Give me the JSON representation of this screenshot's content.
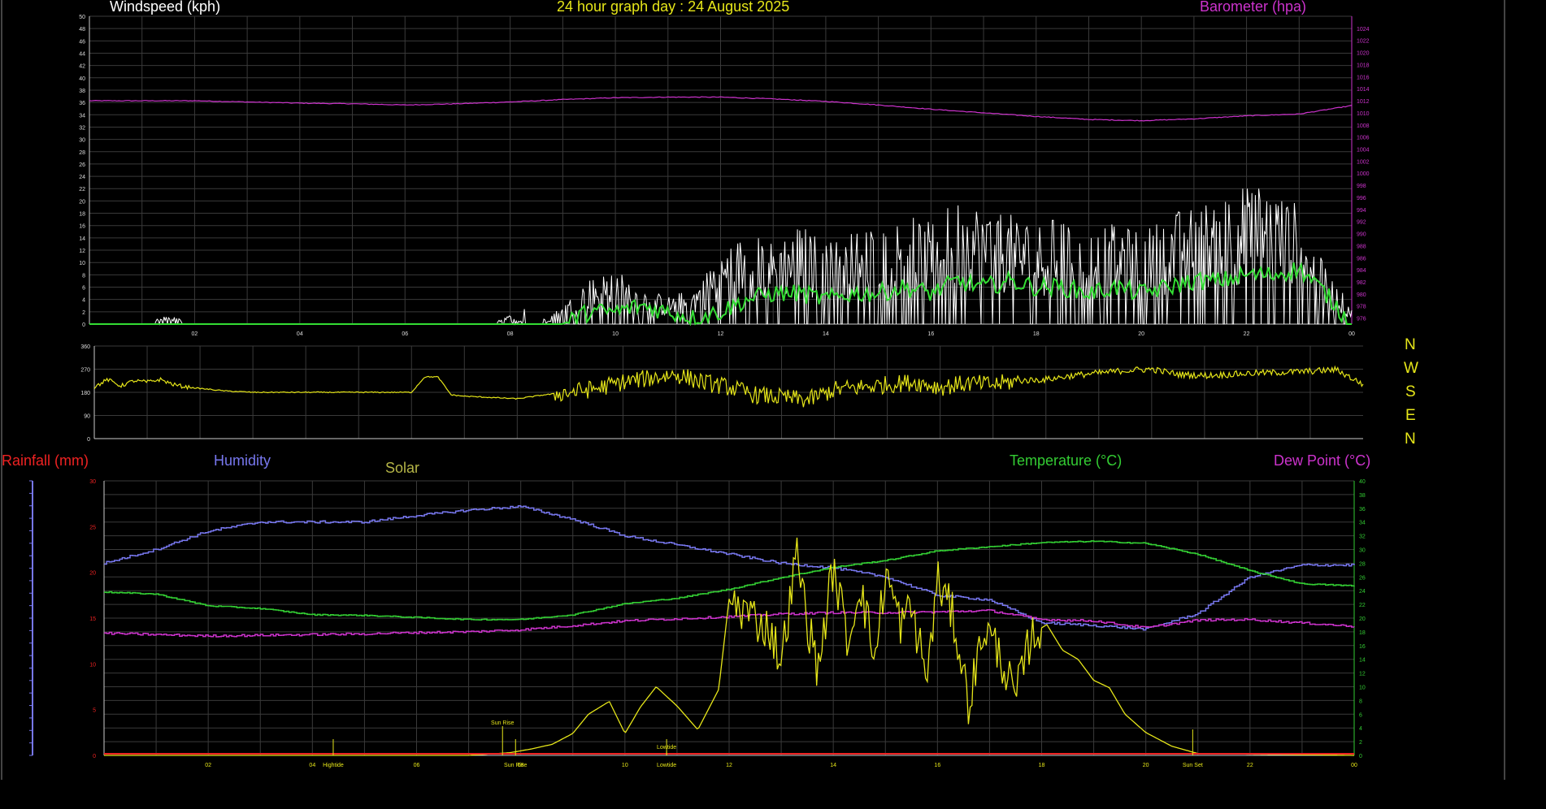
{
  "colors": {
    "bg": "#000000",
    "grid": "#3a3a3a",
    "axis": "#ffffff",
    "wind": "#ffffff",
    "gust_avg": "#33dd33",
    "barometer": "#cc33cc",
    "direction": "#e6e619",
    "rainfall": "#ee2222",
    "humidity": "#7777ee",
    "solar": "#e6e619",
    "solar_label": "#b5b547",
    "temperature": "#33cc33",
    "dewpoint": "#cc33cc",
    "tide": "#e6e619"
  },
  "titles": {
    "main": "24 hour graph day : 24 August 2025"
  },
  "top_chart": {
    "left_label": "Windspeed (kph)",
    "right_label": "Barometer (hpa)"
  },
  "bottom_chart": {
    "rainfall_label": "Rainfall (mm)",
    "humidity_label": "Humidity",
    "solar_label": "Solar",
    "temperature_label": "Temperature (°C)",
    "dewpoint_label": "Dew Point (°C)"
  },
  "compass_labels": [
    "N",
    "W",
    "S",
    "E",
    "N"
  ],
  "chart_data": [
    {
      "type": "line",
      "name": "wind-barometer",
      "x_ticks": [
        "02",
        "04",
        "06",
        "08",
        "10",
        "12",
        "14",
        "16",
        "18",
        "20",
        "22",
        "00"
      ],
      "x_range_hours": [
        0,
        24
      ],
      "y_left_ticks": [
        0,
        2,
        4,
        6,
        8,
        10,
        12,
        14,
        16,
        18,
        20,
        22,
        24,
        26,
        28,
        30,
        32,
        34,
        36,
        38,
        40,
        42,
        44,
        46,
        48,
        50
      ],
      "y_left_range": [
        0,
        50
      ],
      "y_right_ticks": [
        976,
        978,
        980,
        982,
        984,
        986,
        988,
        990,
        992,
        994,
        996,
        998,
        1000,
        1002,
        1004,
        1006,
        1008,
        1010,
        1012,
        1014,
        1016,
        1018,
        1020,
        1022,
        1024
      ],
      "y_right_range": [
        975,
        1026
      ],
      "series": [
        {
          "name": "Windspeed (kph)",
          "x": [
            0,
            0.5,
            1,
            1.5,
            2,
            2.5,
            3,
            3.5,
            4,
            4.5,
            5,
            5.5,
            6,
            6.5,
            7,
            7.5,
            8,
            8.5,
            9,
            9.5,
            10,
            10.5,
            11,
            11.5,
            12,
            12.5,
            13,
            13.5,
            14,
            14.5,
            15,
            15.5,
            16,
            16.5,
            17,
            17.5,
            18,
            18.5,
            19,
            19.5,
            20,
            20.5,
            21,
            21.5,
            22,
            22.5,
            23,
            23.5,
            24
          ],
          "values": [
            0,
            0,
            0,
            1,
            0,
            0,
            0,
            0,
            0,
            0,
            0,
            0,
            0,
            0,
            0,
            0,
            1,
            0,
            2,
            5,
            6,
            4,
            3,
            4,
            8,
            10,
            9,
            11,
            9,
            10,
            11,
            12,
            11,
            14,
            13,
            12,
            11,
            12,
            10,
            11,
            10,
            12,
            13,
            14,
            16,
            15,
            13,
            6,
            2
          ]
        },
        {
          "name": "Wind average",
          "x": [
            0,
            0.5,
            1,
            1.5,
            2,
            2.5,
            3,
            3.5,
            4,
            4.5,
            5,
            5.5,
            6,
            6.5,
            7,
            7.5,
            8,
            8.5,
            9,
            9.5,
            10,
            10.5,
            11,
            11.5,
            12,
            12.5,
            13,
            13.5,
            14,
            14.5,
            15,
            15.5,
            16,
            16.5,
            17,
            17.5,
            18,
            18.5,
            19,
            19.5,
            20,
            20.5,
            21,
            21.5,
            22,
            22.5,
            23,
            23.5,
            24
          ],
          "values": [
            0,
            0,
            0,
            0,
            0,
            0,
            0,
            0,
            0,
            0,
            0,
            0,
            0,
            0,
            0,
            0,
            0,
            0,
            0,
            2,
            2,
            3,
            2,
            1,
            2,
            4,
            5,
            5,
            4,
            5,
            5,
            6,
            5,
            7,
            6,
            7,
            6,
            6,
            5,
            6,
            5,
            6,
            7,
            7,
            8,
            8,
            9,
            5,
            0
          ]
        },
        {
          "name": "Barometer (hpa)",
          "x": [
            0,
            1,
            2,
            3,
            4,
            5,
            6,
            7,
            8,
            9,
            10,
            11,
            12,
            13,
            14,
            15,
            16,
            17,
            18,
            19,
            20,
            21,
            22,
            23,
            24
          ],
          "values": [
            1012.0,
            1012.0,
            1012.0,
            1011.8,
            1011.6,
            1011.5,
            1011.3,
            1011.5,
            1011.8,
            1012.2,
            1012.5,
            1012.6,
            1012.6,
            1012.3,
            1011.9,
            1011.3,
            1010.6,
            1010.0,
            1009.4,
            1008.9,
            1008.7,
            1009.0,
            1009.5,
            1009.8,
            1011.2
          ]
        }
      ]
    },
    {
      "type": "line",
      "name": "wind-direction",
      "y_ticks": [
        0,
        90,
        180,
        270,
        360
      ],
      "y_range": [
        0,
        360
      ],
      "x_range_hours": [
        0,
        24
      ],
      "series": [
        {
          "name": "Wind direction",
          "x": [
            0,
            0.25,
            0.5,
            0.75,
            1,
            1.25,
            1.5,
            1.75,
            2,
            2.5,
            3,
            3.5,
            4,
            4.5,
            5,
            5.5,
            6,
            6.25,
            6.5,
            6.75,
            7,
            7.5,
            8,
            8.5,
            9,
            9.5,
            10,
            10.5,
            11,
            11.5,
            12,
            12.5,
            13,
            13.5,
            14,
            14.5,
            15,
            15.5,
            16,
            16.5,
            17,
            17.5,
            18,
            18.5,
            19,
            19.5,
            20,
            20.5,
            21,
            21.5,
            22,
            22.5,
            23,
            23.5,
            24
          ],
          "values": [
            200,
            230,
            205,
            225,
            220,
            230,
            210,
            200,
            195,
            185,
            180,
            180,
            180,
            180,
            180,
            180,
            180,
            240,
            240,
            170,
            165,
            160,
            155,
            170,
            180,
            195,
            220,
            235,
            250,
            220,
            200,
            170,
            160,
            150,
            190,
            200,
            210,
            220,
            200,
            215,
            210,
            225,
            230,
            245,
            255,
            265,
            270,
            250,
            245,
            250,
            255,
            258,
            262,
            268,
            210
          ]
        }
      ]
    },
    {
      "type": "line",
      "name": "temp-humidity-solar",
      "x_ticks": [
        "02",
        "04",
        "06",
        "08",
        "10",
        "12",
        "14",
        "16",
        "18",
        "20",
        "22",
        "00"
      ],
      "x_range_hours": [
        0,
        24
      ],
      "y_left_ticks": [
        0,
        5,
        10,
        15,
        20,
        25,
        30
      ],
      "y_left_range": [
        0,
        30
      ],
      "y_right_ticks": [
        0,
        2,
        4,
        6,
        8,
        10,
        12,
        14,
        16,
        18,
        20,
        22,
        24,
        26,
        28,
        30,
        32,
        34,
        36,
        38,
        40
      ],
      "y_right_range": [
        0,
        40
      ],
      "annotations": [
        {
          "label": "Hightide",
          "x": 4.4
        },
        {
          "label": "Sun Rise",
          "x": 7.65
        },
        {
          "label": "Sun Rise",
          "x": 7.9
        },
        {
          "label": "Lowtide",
          "x": 10.8
        },
        {
          "label": "Lowtide",
          "x": 10.8
        },
        {
          "label": "Sun Set",
          "x": 20.9
        }
      ],
      "series": [
        {
          "name": "Temperature (°C)",
          "x": [
            0,
            1,
            2,
            3,
            4,
            5,
            6,
            7,
            8,
            9,
            10,
            11,
            12,
            13,
            14,
            15,
            16,
            17,
            18,
            19,
            20,
            21,
            22,
            23,
            24
          ],
          "values": [
            23.8,
            23.5,
            21.8,
            21.4,
            20.5,
            20.4,
            20.1,
            19.8,
            19.8,
            20.5,
            22.1,
            22.9,
            24.2,
            25.9,
            27.4,
            28.4,
            29.8,
            30.4,
            31.0,
            31.2,
            30.9,
            29.3,
            26.9,
            25.0,
            24.7
          ]
        },
        {
          "name": "Humidity",
          "x": [
            0,
            1,
            2,
            3,
            4,
            5,
            6,
            7,
            8,
            9,
            10,
            11,
            12,
            13,
            14,
            15,
            16,
            17,
            18,
            19,
            20,
            21,
            22,
            23,
            24
          ],
          "values": [
            21.0,
            22.5,
            24.5,
            25.5,
            25.5,
            25.5,
            26.2,
            26.8,
            27.2,
            25.8,
            24.0,
            23.0,
            22.0,
            21.0,
            20.5,
            19.5,
            17.5,
            17.0,
            14.5,
            14.2,
            13.8,
            15.5,
            19.5,
            20.8,
            20.8
          ]
        },
        {
          "name": "Dew Point (°C)",
          "x": [
            0,
            1,
            2,
            3,
            4,
            5,
            6,
            7,
            8,
            9,
            10,
            11,
            12,
            13,
            14,
            15,
            16,
            17,
            18,
            19,
            20,
            21,
            22,
            23,
            24
          ],
          "values": [
            17.8,
            17.6,
            17.4,
            17.5,
            17.6,
            17.7,
            17.9,
            18.0,
            18.3,
            18.9,
            19.6,
            19.9,
            20.2,
            20.6,
            20.8,
            20.8,
            20.9,
            21.1,
            19.8,
            19.6,
            18.6,
            19.7,
            19.8,
            19.3,
            18.8
          ]
        },
        {
          "name": "Solar",
          "x": [
            0,
            7,
            7.8,
            8.2,
            8.6,
            9.0,
            9.3,
            9.7,
            10.0,
            10.3,
            10.6,
            11.0,
            11.4,
            11.8,
            12.0,
            12.4,
            12.8,
            13.0,
            13.3,
            13.5,
            13.7,
            14.0,
            14.3,
            14.5,
            14.8,
            15.0,
            15.3,
            15.5,
            15.8,
            16.0,
            16.3,
            16.6,
            16.9,
            17.2,
            17.5,
            17.8,
            18.1,
            18.4,
            18.7,
            19.0,
            19.3,
            19.6,
            20.0,
            20.5,
            21.0,
            24
          ],
          "values": [
            0,
            0,
            0.3,
            0.7,
            1.2,
            2.4,
            4.5,
            5.9,
            2.4,
            5.3,
            7.5,
            5.4,
            2.8,
            7.2,
            17.1,
            15.4,
            13.6,
            10.2,
            22.1,
            14.8,
            9.3,
            20.6,
            12.1,
            19.2,
            10.4,
            20.1,
            14.3,
            16.1,
            8.4,
            19.2,
            15.2,
            5.7,
            14.1,
            11.0,
            6.1,
            13.2,
            14.3,
            11.5,
            10.5,
            8.2,
            7.4,
            4.5,
            2.5,
            1.0,
            0.2,
            0
          ]
        },
        {
          "name": "Rainfall (mm)",
          "x": [
            0,
            24
          ],
          "values": [
            0,
            0
          ]
        }
      ]
    }
  ]
}
